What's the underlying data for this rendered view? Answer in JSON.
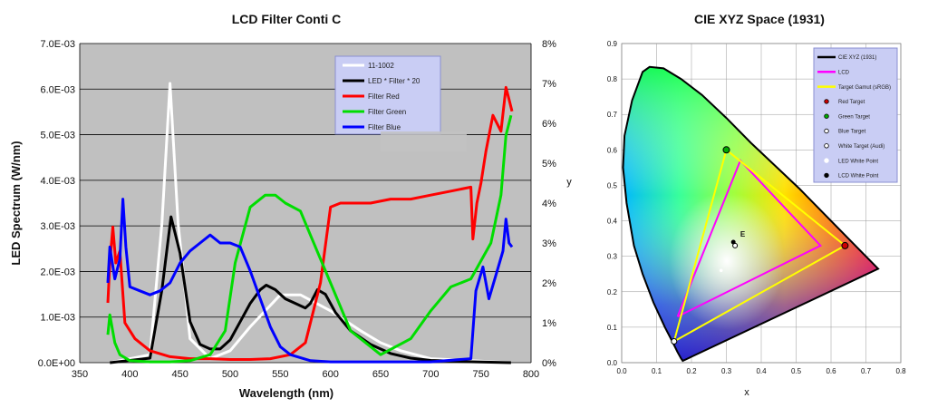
{
  "chart_data": [
    {
      "type": "line",
      "title": "LCD Filter Conti C",
      "xlabel": "Wavelength (nm)",
      "ylabel": "LED Spectrum (W/nm)",
      "xlim": [
        350,
        800
      ],
      "ylim": [
        0,
        0.007
      ],
      "y2lim": [
        0,
        8
      ],
      "x_ticks": [
        "350",
        "400",
        "450",
        "500",
        "550",
        "600",
        "650",
        "700",
        "750",
        "800"
      ],
      "y_ticks": [
        "0.0E+00",
        "1.0E-03",
        "2.0E-03",
        "3.0E-03",
        "4.0E-03",
        "5.0E-03",
        "6.0E-03",
        "7.0E-03"
      ],
      "y2_ticks": [
        "0%",
        "1%",
        "2%",
        "3%",
        "4%",
        "5%",
        "6%",
        "7%",
        "8%"
      ],
      "legend_position": "top-right",
      "series": [
        {
          "name": "11-1002",
          "color": "#ffffff",
          "axis": "right",
          "x": [
            380,
            420,
            432,
            440,
            448,
            460,
            480,
            500,
            520,
            550,
            570,
            600,
            630,
            650,
            670,
            700,
            740,
            780
          ],
          "y": [
            0,
            0.2,
            3.5,
            7.0,
            3.5,
            0.6,
            0.1,
            0.3,
            0.9,
            1.7,
            1.7,
            1.3,
            0.8,
            0.5,
            0.3,
            0.1,
            0.05,
            0
          ]
        },
        {
          "name": "LED * Filter * 20",
          "color": "#000000",
          "axis": "left",
          "x": [
            380,
            420,
            432,
            441,
            450,
            460,
            470,
            480,
            490,
            500,
            510,
            520,
            530,
            536,
            545,
            555,
            565,
            575,
            580,
            587,
            595,
            605,
            620,
            640,
            660,
            680,
            700,
            740,
            780
          ],
          "y": [
            0,
            0.0001,
            0.0016,
            0.0032,
            0.0024,
            0.0009,
            0.0004,
            0.0003,
            0.0003,
            0.0005,
            0.0009,
            0.0013,
            0.0016,
            0.0017,
            0.0016,
            0.0014,
            0.0013,
            0.0012,
            0.0013,
            0.0016,
            0.0015,
            0.0011,
            0.0007,
            0.0004,
            0.0002,
            0.0001,
            5e-05,
            2e-05,
            0
          ]
        },
        {
          "name": "Filter Red",
          "color": "#ff0000",
          "axis": "right",
          "x": [
            378,
            380,
            383,
            386,
            390,
            395,
            405,
            420,
            440,
            460,
            480,
            500,
            520,
            540,
            560,
            575,
            590,
            600,
            610,
            620,
            640,
            660,
            680,
            700,
            720,
            740,
            742,
            746,
            750,
            755,
            762,
            770,
            775,
            778,
            781
          ],
          "y": [
            1.5,
            2.5,
            3.4,
            2.5,
            2.8,
            1.0,
            0.6,
            0.3,
            0.15,
            0.1,
            0.1,
            0.08,
            0.08,
            0.1,
            0.2,
            0.5,
            2.0,
            3.9,
            4.0,
            4.0,
            4.0,
            4.1,
            4.1,
            4.2,
            4.3,
            4.4,
            3.1,
            4.0,
            4.5,
            5.3,
            6.2,
            5.8,
            6.9,
            6.6,
            6.3
          ]
        },
        {
          "name": "Filter Green",
          "color": "#00dd00",
          "axis": "right",
          "x": [
            378,
            380,
            385,
            390,
            400,
            420,
            440,
            460,
            480,
            495,
            505,
            520,
            535,
            545,
            555,
            570,
            580,
            600,
            620,
            650,
            680,
            700,
            720,
            740,
            760,
            770,
            775,
            780
          ],
          "y": [
            0.7,
            1.2,
            0.5,
            0.2,
            0.05,
            0.02,
            0.02,
            0.05,
            0.2,
            0.8,
            2.5,
            3.9,
            4.2,
            4.2,
            4.0,
            3.8,
            3.2,
            2.0,
            0.8,
            0.2,
            0.6,
            1.3,
            1.9,
            2.1,
            3.0,
            4.2,
            5.7,
            6.2
          ]
        },
        {
          "name": "Filter Blue",
          "color": "#0000ff",
          "axis": "right",
          "x": [
            378,
            380,
            385,
            390,
            393,
            396,
            400,
            410,
            420,
            430,
            440,
            450,
            460,
            470,
            480,
            490,
            500,
            510,
            520,
            530,
            540,
            550,
            560,
            580,
            600,
            700,
            740,
            745,
            752,
            758,
            765,
            772,
            775,
            778,
            781
          ],
          "y": [
            2.0,
            2.9,
            2.1,
            2.6,
            4.1,
            2.9,
            1.9,
            1.8,
            1.7,
            1.8,
            2.0,
            2.5,
            2.8,
            3.0,
            3.2,
            3.0,
            3.0,
            2.9,
            2.3,
            1.6,
            0.9,
            0.4,
            0.2,
            0.05,
            0.02,
            0.02,
            0.1,
            1.8,
            2.4,
            1.6,
            2.2,
            2.8,
            3.6,
            3.0,
            2.9
          ]
        }
      ]
    },
    {
      "type": "scatter",
      "title": "CIE XYZ Space (1931)",
      "xlabel": "x",
      "ylabel": "y",
      "xlim": [
        0,
        0.8
      ],
      "ylim": [
        0,
        0.9
      ],
      "x_ticks": [
        "0.0",
        "0.1",
        "0.2",
        "0.3",
        "0.4",
        "0.5",
        "0.6",
        "0.7",
        "0.8"
      ],
      "y_ticks": [
        "0.0",
        "0.1",
        "0.2",
        "0.3",
        "0.4",
        "0.5",
        "0.6",
        "0.7",
        "0.8",
        "0.9"
      ],
      "legend_position": "top-right",
      "locus": [
        [
          0.175,
          0.005
        ],
        [
          0.17,
          0.012
        ],
        [
          0.16,
          0.03
        ],
        [
          0.145,
          0.06
        ],
        [
          0.124,
          0.1
        ],
        [
          0.091,
          0.17
        ],
        [
          0.06,
          0.25
        ],
        [
          0.035,
          0.33
        ],
        [
          0.014,
          0.45
        ],
        [
          0.004,
          0.55
        ],
        [
          0.008,
          0.64
        ],
        [
          0.03,
          0.74
        ],
        [
          0.06,
          0.82
        ],
        [
          0.08,
          0.834
        ],
        [
          0.12,
          0.83
        ],
        [
          0.17,
          0.8
        ],
        [
          0.23,
          0.755
        ],
        [
          0.3,
          0.69
        ],
        [
          0.37,
          0.62
        ],
        [
          0.44,
          0.555
        ],
        [
          0.51,
          0.49
        ],
        [
          0.57,
          0.43
        ],
        [
          0.63,
          0.37
        ],
        [
          0.69,
          0.31
        ],
        [
          0.735,
          0.265
        ],
        [
          0.175,
          0.005
        ]
      ],
      "series": [
        {
          "name": "CIE XYZ (1931)",
          "color": "#000000",
          "marker": "line"
        },
        {
          "name": "LCD",
          "color": "#ff00ff",
          "points": [
            [
              0.16,
              0.13
            ],
            [
              0.34,
              0.57
            ],
            [
              0.57,
              0.33
            ],
            [
              0.16,
              0.13
            ]
          ]
        },
        {
          "name": "Target Gamut (sRGB)",
          "color": "#ffff00",
          "points": [
            [
              0.15,
              0.06
            ],
            [
              0.3,
              0.6
            ],
            [
              0.64,
              0.33
            ],
            [
              0.15,
              0.06
            ]
          ]
        },
        {
          "name": "Red Target",
          "color": "#cc0000",
          "points": [
            [
              0.64,
              0.33
            ]
          ]
        },
        {
          "name": "Green Target",
          "color": "#00aa00",
          "points": [
            [
              0.3,
              0.6
            ]
          ]
        },
        {
          "name": "Blue Target",
          "color": "#ffffff",
          "points": [
            [
              0.15,
              0.06
            ]
          ]
        },
        {
          "name": "White Target (Audi)",
          "color": "#ffffff",
          "points": [
            [
              0.325,
              0.33
            ]
          ]
        },
        {
          "name": "LED White Point",
          "color": "#ffffff",
          "points": [
            [
              0.285,
              0.26
            ]
          ]
        },
        {
          "name": "LCD White Point",
          "color": "#000000",
          "points": [
            [
              0.32,
              0.34
            ]
          ]
        }
      ],
      "annotations": [
        "E"
      ]
    }
  ]
}
